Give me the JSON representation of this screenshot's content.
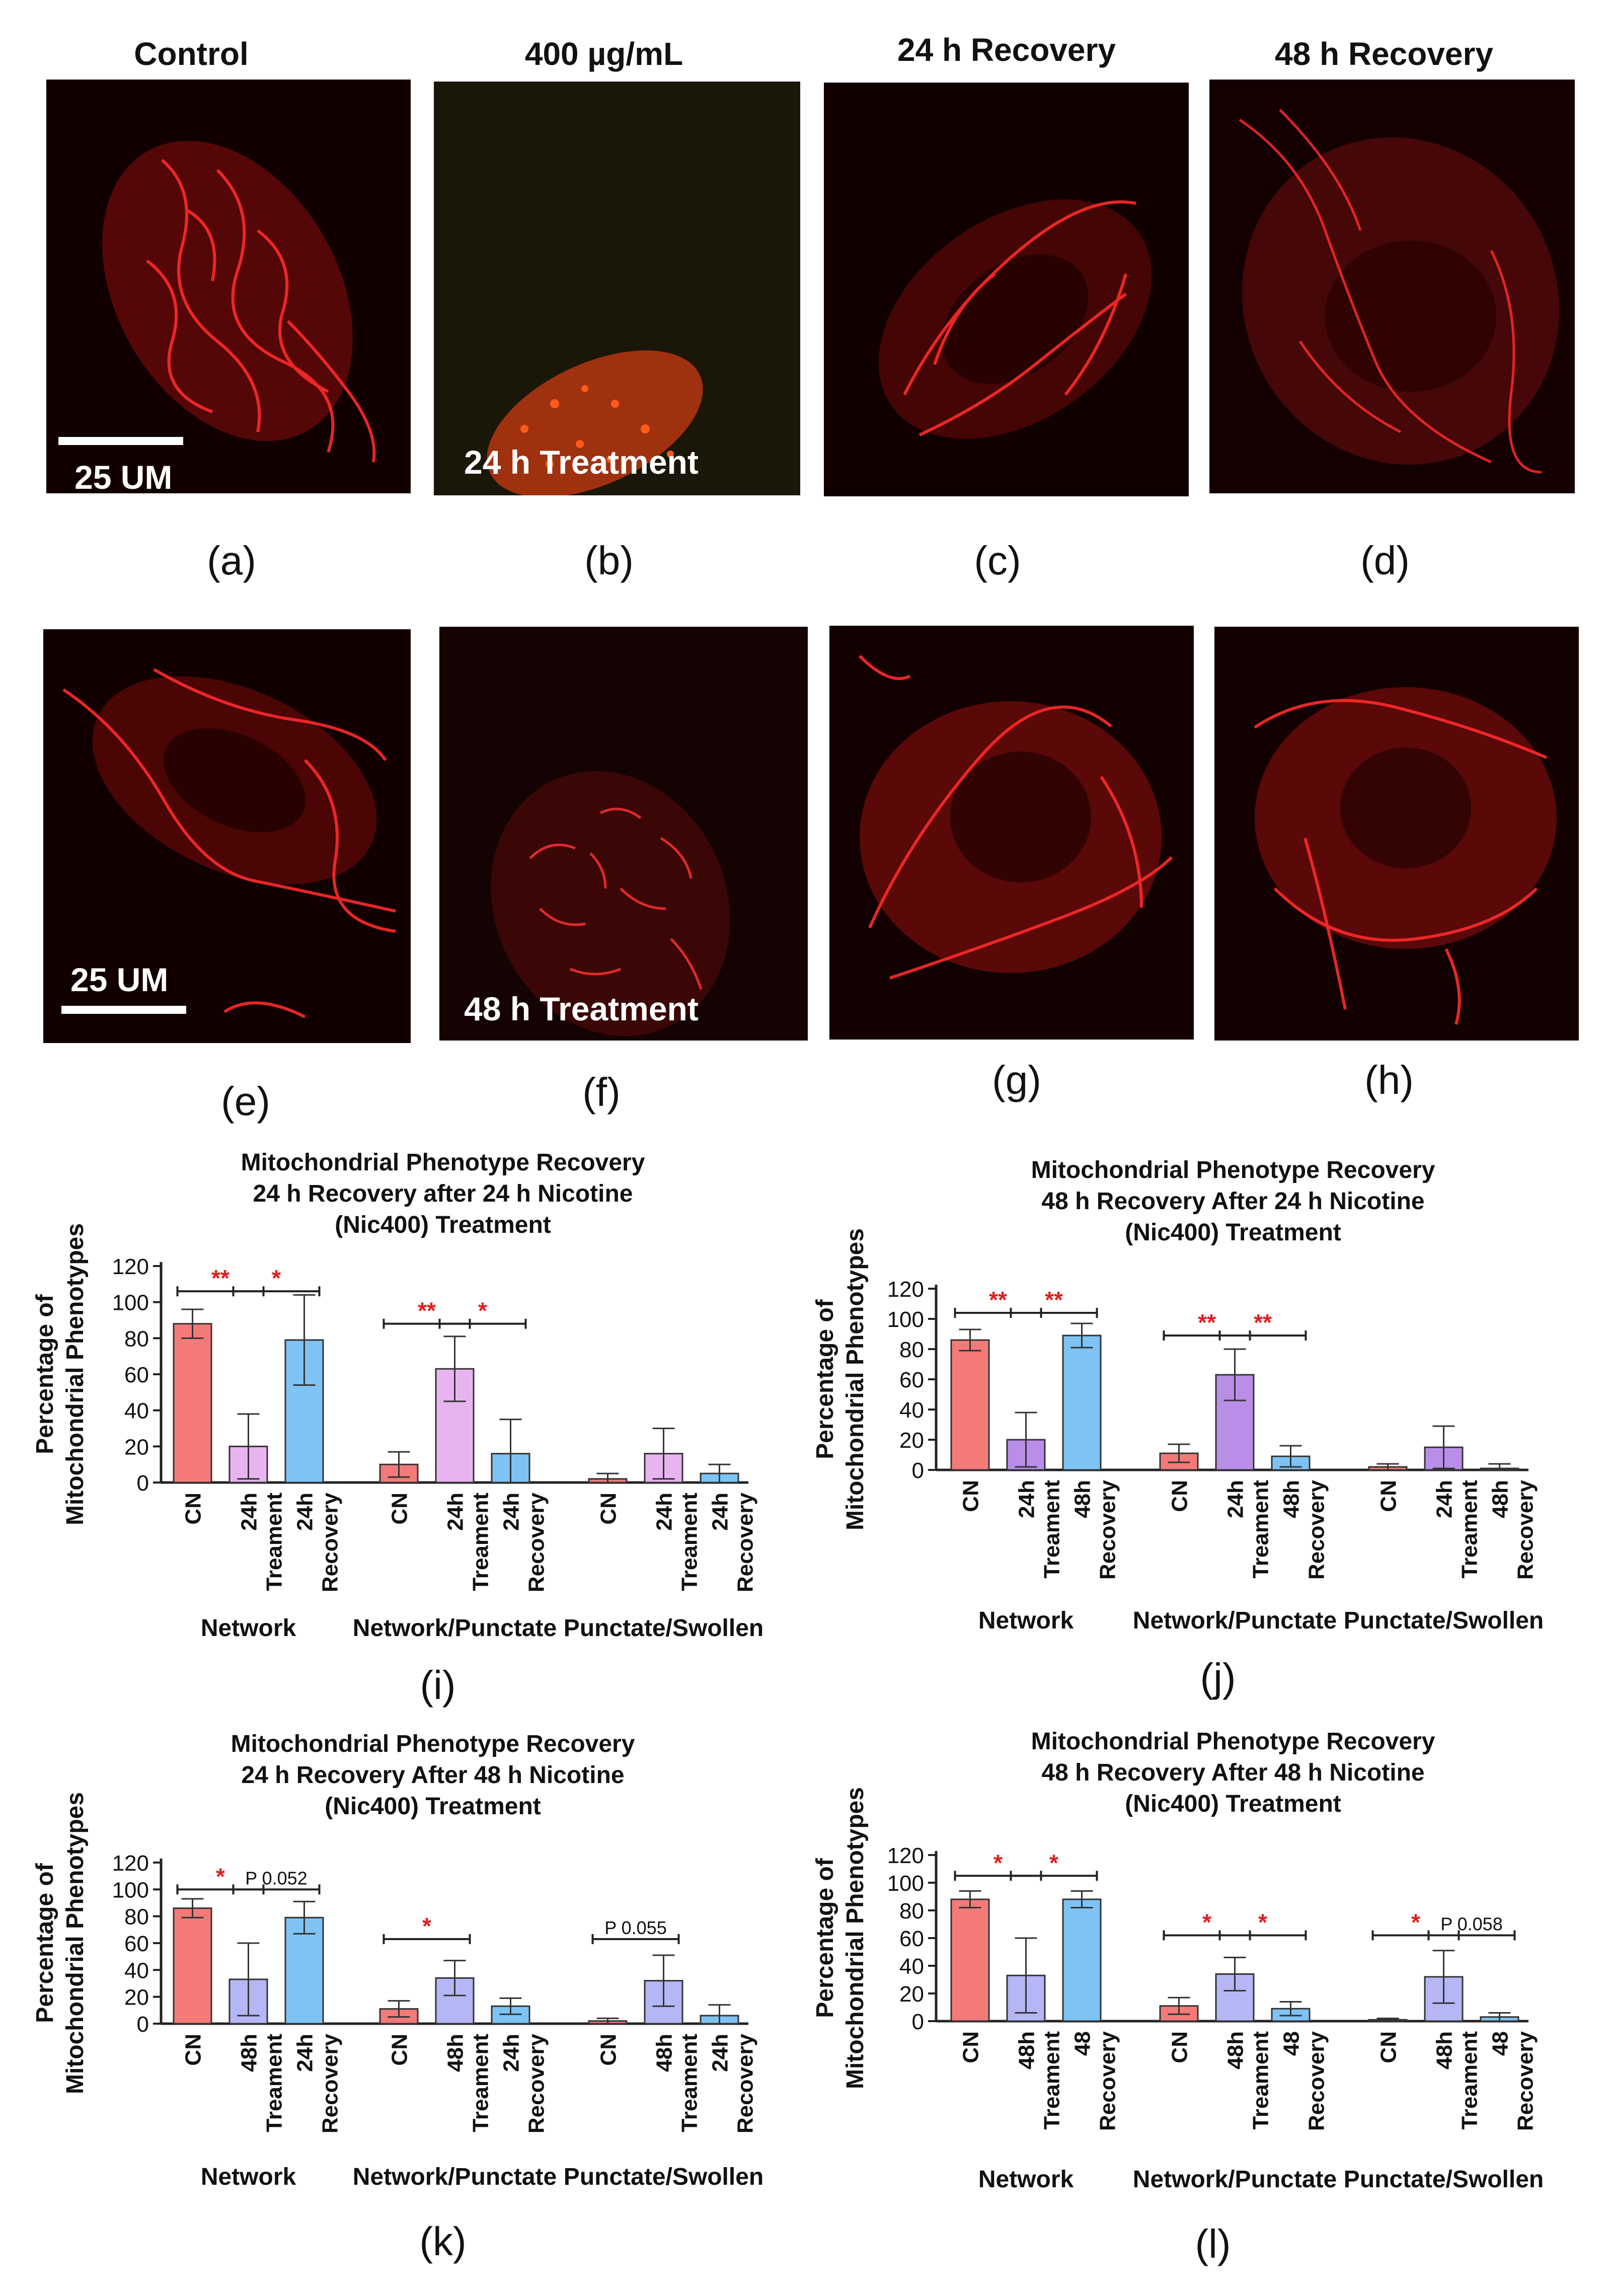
{
  "panels": {
    "headers": [
      "Control",
      "400  µg/mL",
      "24 h Recovery",
      "48 h Recovery"
    ],
    "row1_labels": [
      "(a)",
      "(b)",
      "(c)",
      "(d)"
    ],
    "row2_labels": [
      "(e)",
      "(f)",
      "(g)",
      "(h)"
    ],
    "scale_bar_a": "25 UM",
    "scale_bar_e": "25 UM",
    "treatment_b": "24 h Treatment",
    "treatment_f": "48 h Treatment"
  },
  "colors": {
    "red_bar": "#f47a79",
    "pink_bar": "#e8b4f0",
    "purple_bar": "#b98ee8",
    "lavender_bar": "#b5b6f5",
    "blue_bar": "#7ec3f4",
    "sig_red": "#e0201f"
  },
  "chart_data": [
    {
      "id": "i",
      "type": "bar",
      "panel_label": "(i)",
      "title": [
        "Mitochondrial Phenotype Recovery",
        "24 h Recovery after 24 h Nicotine",
        "(Nic400) Treatment"
      ],
      "ylabel": [
        "Percentage of",
        "Mitochondrial Phenotypes"
      ],
      "ylim": [
        0,
        120
      ],
      "yticks": [
        0,
        20,
        40,
        60,
        80,
        100,
        120
      ],
      "groups": [
        "Network",
        "Network/Punctate",
        "Punctate/Swollen"
      ],
      "categories": [
        "CN",
        "24h Treament",
        "24h Recovery"
      ],
      "colors": [
        "#f47a79",
        "#e8b4f0",
        "#7ec3f4"
      ],
      "series": [
        {
          "name": "CN",
          "values": [
            88,
            10,
            2
          ],
          "errors": [
            8,
            7,
            3
          ]
        },
        {
          "name": "24h Treament",
          "values": [
            20,
            63,
            16
          ],
          "errors": [
            18,
            18,
            14
          ]
        },
        {
          "name": "24h Recovery",
          "values": [
            79,
            16,
            5
          ],
          "errors": [
            25,
            19,
            5
          ]
        }
      ],
      "annotations": [
        {
          "group": 0,
          "from": 0,
          "to": 1,
          "text": "**",
          "level": 106,
          "color": "red"
        },
        {
          "group": 0,
          "from": 1,
          "to": 2,
          "text": "*",
          "level": 106,
          "color": "red"
        },
        {
          "group": 1,
          "from": 0,
          "to": 1,
          "text": "**",
          "level": 88,
          "color": "red"
        },
        {
          "group": 1,
          "from": 1,
          "to": 2,
          "text": "*",
          "level": 88,
          "color": "red"
        }
      ]
    },
    {
      "id": "j",
      "type": "bar",
      "panel_label": "(j)",
      "title": [
        "Mitochondrial Phenotype Recovery",
        "48 h Recovery After 24 h Nicotine",
        "(Nic400) Treatment"
      ],
      "ylabel": [
        "Percentage of",
        "Mitochondrial Phenotypes"
      ],
      "ylim": [
        0,
        120
      ],
      "yticks": [
        0,
        20,
        40,
        60,
        80,
        100,
        120
      ],
      "groups": [
        "Network",
        "Network/Punctate",
        "Punctate/Swollen"
      ],
      "categories": [
        "CN",
        "24h Treament",
        "48h Recovery"
      ],
      "colors": [
        "#f47a79",
        "#b98ee8",
        "#7ec3f4"
      ],
      "series": [
        {
          "name": "CN",
          "values": [
            86,
            11,
            2
          ],
          "errors": [
            7,
            6,
            2
          ]
        },
        {
          "name": "24h Treament",
          "values": [
            20,
            63,
            15
          ],
          "errors": [
            18,
            17,
            14
          ]
        },
        {
          "name": "48h Recovery",
          "values": [
            89,
            9,
            1
          ],
          "errors": [
            8,
            7,
            3
          ]
        }
      ],
      "annotations": [
        {
          "group": 0,
          "from": 0,
          "to": 1,
          "text": "**",
          "level": 104,
          "color": "red"
        },
        {
          "group": 0,
          "from": 1,
          "to": 2,
          "text": "**",
          "level": 104,
          "color": "red"
        },
        {
          "group": 1,
          "from": 0,
          "to": 1,
          "text": "**",
          "level": 89,
          "color": "red"
        },
        {
          "group": 1,
          "from": 1,
          "to": 2,
          "text": "**",
          "level": 89,
          "color": "red"
        }
      ]
    },
    {
      "id": "k",
      "type": "bar",
      "panel_label": "(k)",
      "title": [
        "Mitochondrial Phenotype Recovery",
        "24 h Recovery After 48 h Nicotine",
        "(Nic400) Treatment"
      ],
      "ylabel": [
        "Percentage of",
        "Mitochondrial Phenotypes"
      ],
      "ylim": [
        0,
        120
      ],
      "yticks": [
        0,
        20,
        40,
        60,
        80,
        100,
        120
      ],
      "groups": [
        "Network",
        "Network/Punctate",
        "Punctate/Swollen"
      ],
      "categories": [
        "CN",
        "48h Treament",
        "24h Recovery"
      ],
      "colors": [
        "#f47a79",
        "#b5b6f5",
        "#7ec3f4"
      ],
      "series": [
        {
          "name": "CN",
          "values": [
            86,
            11,
            2
          ],
          "errors": [
            7,
            6,
            2
          ]
        },
        {
          "name": "48h Treament",
          "values": [
            33,
            34,
            32
          ],
          "errors": [
            27,
            13,
            19
          ]
        },
        {
          "name": "24h Recovery",
          "values": [
            79,
            13,
            6
          ],
          "errors": [
            12,
            6,
            8
          ]
        }
      ],
      "annotations": [
        {
          "group": 0,
          "from": 0,
          "to": 1,
          "text": "*",
          "level": 100,
          "color": "red"
        },
        {
          "group": 0,
          "from": 1,
          "to": 2,
          "text": "P 0.052",
          "level": 100,
          "color": "black"
        },
        {
          "group": 1,
          "from": 0,
          "to": 1,
          "text": "*",
          "level": 63,
          "color": "red"
        },
        {
          "group": 2,
          "from": 0,
          "to": 1,
          "text": "P 0.055",
          "level": 63,
          "color": "black"
        }
      ]
    },
    {
      "id": "l",
      "type": "bar",
      "panel_label": "(l)",
      "title": [
        "Mitochondrial Phenotype Recovery",
        "48 h Recovery After 48 h Nicotine",
        "(Nic400) Treatment"
      ],
      "ylabel": [
        "Percentage of",
        "Mitochondrial Phenotypes"
      ],
      "ylim": [
        0,
        120
      ],
      "yticks": [
        0,
        20,
        40,
        60,
        80,
        100,
        120
      ],
      "groups": [
        "Network",
        "Network/Punctate",
        "Punctate/Swollen"
      ],
      "categories": [
        "CN",
        "48h Treament",
        "48 Recovery"
      ],
      "colors": [
        "#f47a79",
        "#b5b6f5",
        "#7ec3f4"
      ],
      "series": [
        {
          "name": "CN",
          "values": [
            88,
            11,
            1
          ],
          "errors": [
            6,
            6,
            1
          ]
        },
        {
          "name": "48h Treament",
          "values": [
            33,
            34,
            32
          ],
          "errors": [
            27,
            12,
            19
          ]
        },
        {
          "name": "48 Recovery",
          "values": [
            88,
            9,
            3
          ],
          "errors": [
            6,
            5,
            3
          ]
        }
      ],
      "annotations": [
        {
          "group": 0,
          "from": 0,
          "to": 1,
          "text": "*",
          "level": 105,
          "color": "red"
        },
        {
          "group": 0,
          "from": 1,
          "to": 2,
          "text": "*",
          "level": 105,
          "color": "red"
        },
        {
          "group": 1,
          "from": 0,
          "to": 1,
          "text": "*",
          "level": 62,
          "color": "red"
        },
        {
          "group": 1,
          "from": 1,
          "to": 2,
          "text": "*",
          "level": 62,
          "color": "red"
        },
        {
          "group": 2,
          "from": 0,
          "to": 1,
          "text": "*",
          "level": 62,
          "color": "red"
        },
        {
          "group": 2,
          "from": 1,
          "to": 2,
          "text": "P 0.058",
          "level": 62,
          "color": "black"
        }
      ]
    }
  ]
}
